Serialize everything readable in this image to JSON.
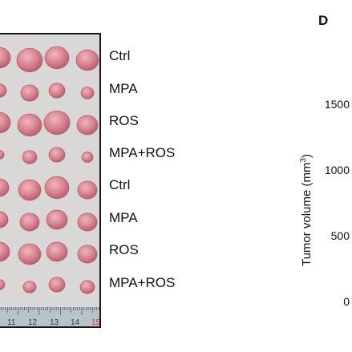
{
  "figure": {
    "panel_letter": "D",
    "group_labels": [
      "Ctrl",
      "MPA",
      "ROS",
      "MPA+ROS",
      "Ctrl",
      "MPA",
      "ROS",
      "MPA+ROS"
    ],
    "ruler": {
      "numbers": [
        "11",
        "12",
        "13",
        "14",
        "15"
      ],
      "highlight_number": "15",
      "highlight_color": "#d23a2a"
    },
    "chart": {
      "ylabel_prefix": "Tumor volume (mm",
      "ylabel_power": "3",
      "ylabel_suffix": ")",
      "yticks": [
        "1500",
        "1000",
        "500",
        "0"
      ]
    },
    "colors": {
      "tumor": "#d78390",
      "tumor_highlight": "#f0b6bd",
      "tumor_shadow": "#b8606e",
      "background": "#d9d8d6",
      "ruler": "#b9c3ca",
      "frame": "#1a1a1a"
    }
  }
}
